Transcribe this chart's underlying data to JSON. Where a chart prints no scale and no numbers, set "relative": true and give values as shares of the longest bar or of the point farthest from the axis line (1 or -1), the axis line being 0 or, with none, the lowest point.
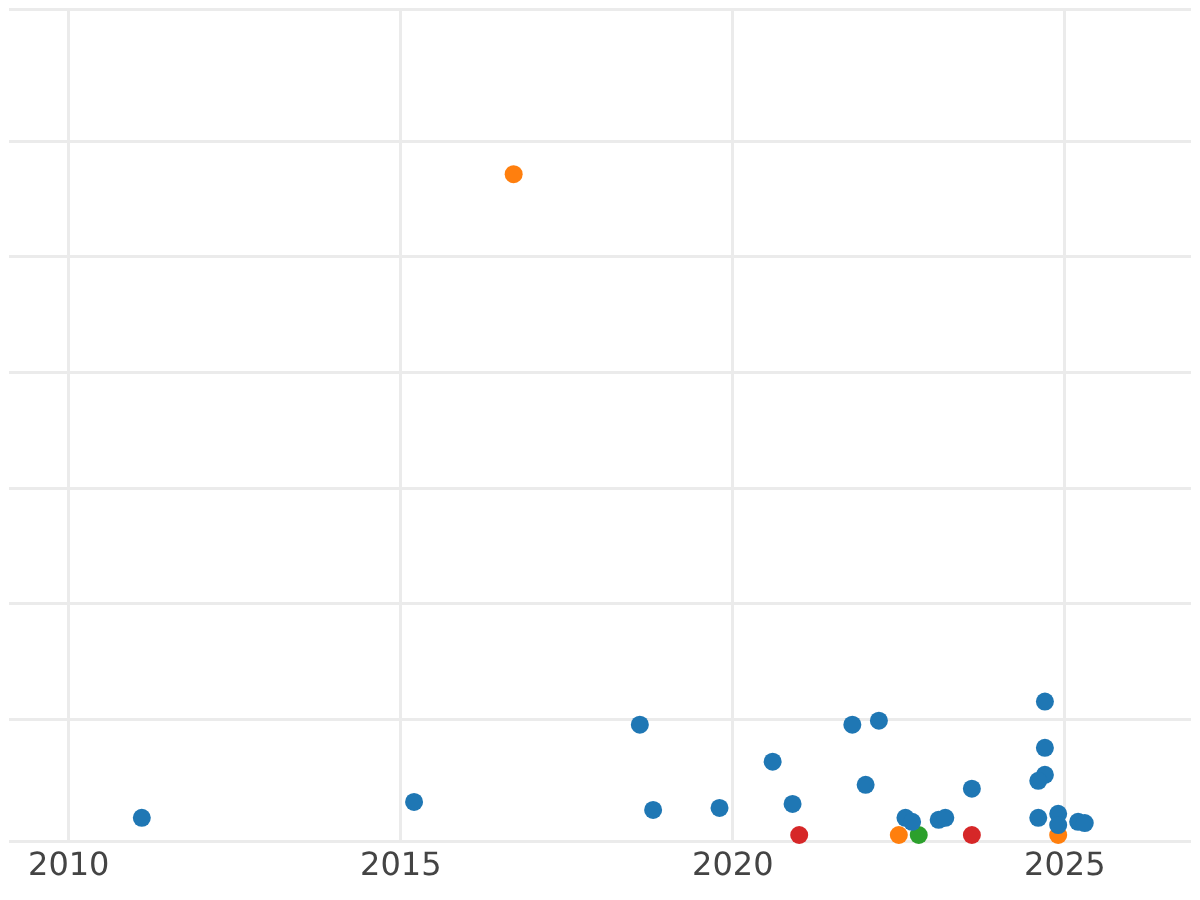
{
  "chart_data": {
    "type": "scatter",
    "relative": true,
    "marker": "circle",
    "grid": true,
    "legend": false,
    "tick_labels": "x",
    "xlim": [
      2009.1,
      2026.9
    ],
    "xticks": [
      2010,
      2015,
      2020,
      2025
    ],
    "series": [
      {
        "color": "#1f77b4",
        "x": [
          2011.1,
          2015.2,
          2018.6,
          2018.8,
          2019.8,
          2020.6,
          2020.9,
          2021.8,
          2022.0,
          2022.2,
          2022.6,
          2022.7,
          2023.1,
          2023.2,
          2023.6,
          2024.7,
          2024.7,
          2024.7,
          2024.6,
          2024.6,
          2024.9,
          2024.9,
          2025.2,
          2025.3
        ],
        "values": [
          0.026,
          0.05,
          0.167,
          0.038,
          0.041,
          0.111,
          0.047,
          0.167,
          0.076,
          0.173,
          0.026,
          0.02,
          0.023,
          0.026,
          0.07,
          0.202,
          0.132,
          0.091,
          0.082,
          0.026,
          0.032,
          0.015,
          0.02,
          0.018
        ]
      },
      {
        "color": "#ff7f0e",
        "x": [
          2016.7,
          2022.5,
          2024.9
        ],
        "values": [
          1,
          0,
          0
        ]
      },
      {
        "color": "#2ca02c",
        "x": [
          2022.8
        ],
        "values": [
          0
        ]
      },
      {
        "color": "#d62728",
        "x": [
          2021.0,
          2023.6
        ],
        "values": [
          0,
          0
        ]
      }
    ]
  }
}
